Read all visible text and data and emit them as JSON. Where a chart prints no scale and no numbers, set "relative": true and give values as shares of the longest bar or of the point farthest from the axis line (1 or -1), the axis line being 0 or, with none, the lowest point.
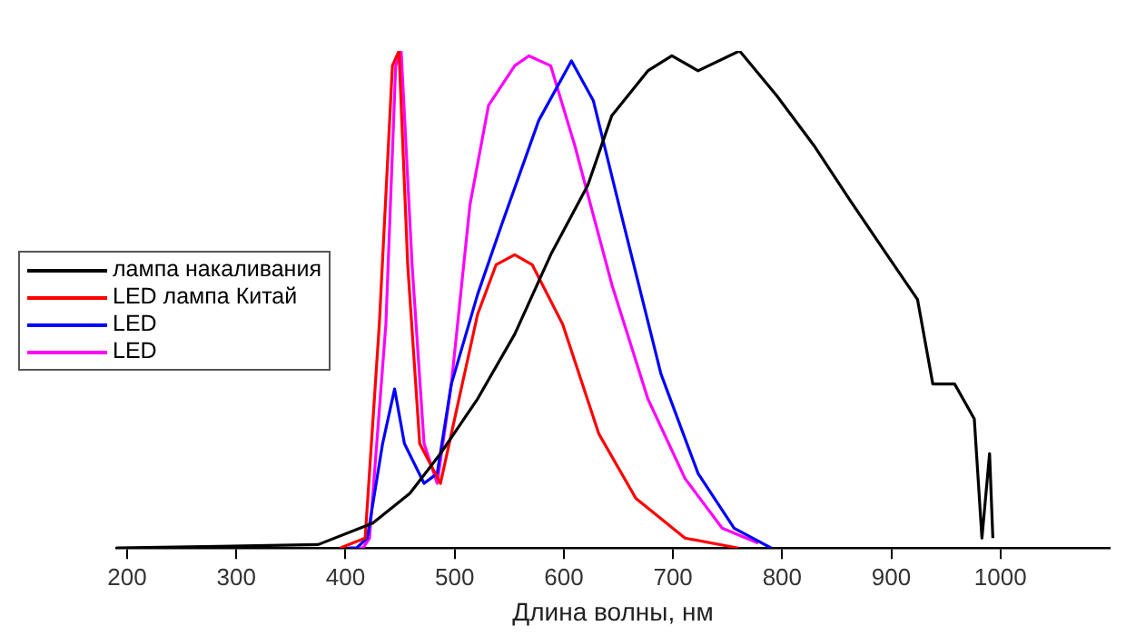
{
  "chart_data": {
    "type": "line",
    "xlabel": "Длина волны, нм",
    "relative": true,
    "xlim": [
      190,
      1100
    ],
    "xticks": [
      200,
      300,
      400,
      500,
      600,
      700,
      800,
      900,
      1000
    ],
    "grid": false,
    "legend": "left",
    "marker": "none",
    "line_style": "solid",
    "series": [
      {
        "name": "лампа накаливания",
        "color": "#000000",
        "x": [
          190,
          375,
          425,
          459,
          487,
          521,
          555,
          588,
          622,
          644,
          677,
          699,
          723,
          761,
          795,
          829,
          862,
          896,
          924,
          938,
          958,
          976,
          983,
          990,
          993
        ],
        "values": [
          0,
          0.007,
          0.05,
          0.11,
          0.19,
          0.3,
          0.43,
          0.59,
          0.73,
          0.87,
          0.96,
          0.99,
          0.96,
          1.0,
          0.91,
          0.81,
          0.7,
          0.59,
          0.5,
          0.33,
          0.33,
          0.26,
          0.02,
          0.19,
          0.02
        ]
      },
      {
        "name": "LED лампа Китай",
        "color": "#ff0000",
        "x": [
          395,
          418,
          431,
          443,
          449,
          457,
          468,
          487,
          501,
          521,
          538,
          555,
          571,
          599,
          632,
          666,
          711,
          760
        ],
        "values": [
          0,
          0.02,
          0.45,
          0.97,
          1.0,
          0.57,
          0.21,
          0.13,
          0.27,
          0.47,
          0.57,
          0.59,
          0.57,
          0.45,
          0.23,
          0.1,
          0.02,
          0
        ]
      },
      {
        "name": "LED",
        "color": "#0000ff",
        "x": [
          403,
          410,
          420,
          434,
          445,
          454,
          472,
          484,
          497,
          521,
          543,
          577,
          607,
          627,
          655,
          689,
          723,
          756,
          790
        ],
        "values": [
          0,
          0,
          0.02,
          0.21,
          0.32,
          0.21,
          0.13,
          0.15,
          0.33,
          0.51,
          0.65,
          0.86,
          0.98,
          0.9,
          0.65,
          0.35,
          0.15,
          0.04,
          0
        ]
      },
      {
        "name": "LED",
        "color": "#ff00ff",
        "x": [
          412,
          416,
          422,
          437,
          446,
          451,
          461,
          472,
          484,
          497,
          514,
          531,
          555,
          568,
          588,
          610,
          644,
          677,
          711,
          745,
          778
        ],
        "values": [
          0,
          0,
          0.02,
          0.45,
          0.97,
          1.0,
          0.57,
          0.21,
          0.13,
          0.33,
          0.69,
          0.89,
          0.97,
          0.99,
          0.97,
          0.81,
          0.53,
          0.3,
          0.14,
          0.04,
          0.01
        ]
      }
    ]
  }
}
